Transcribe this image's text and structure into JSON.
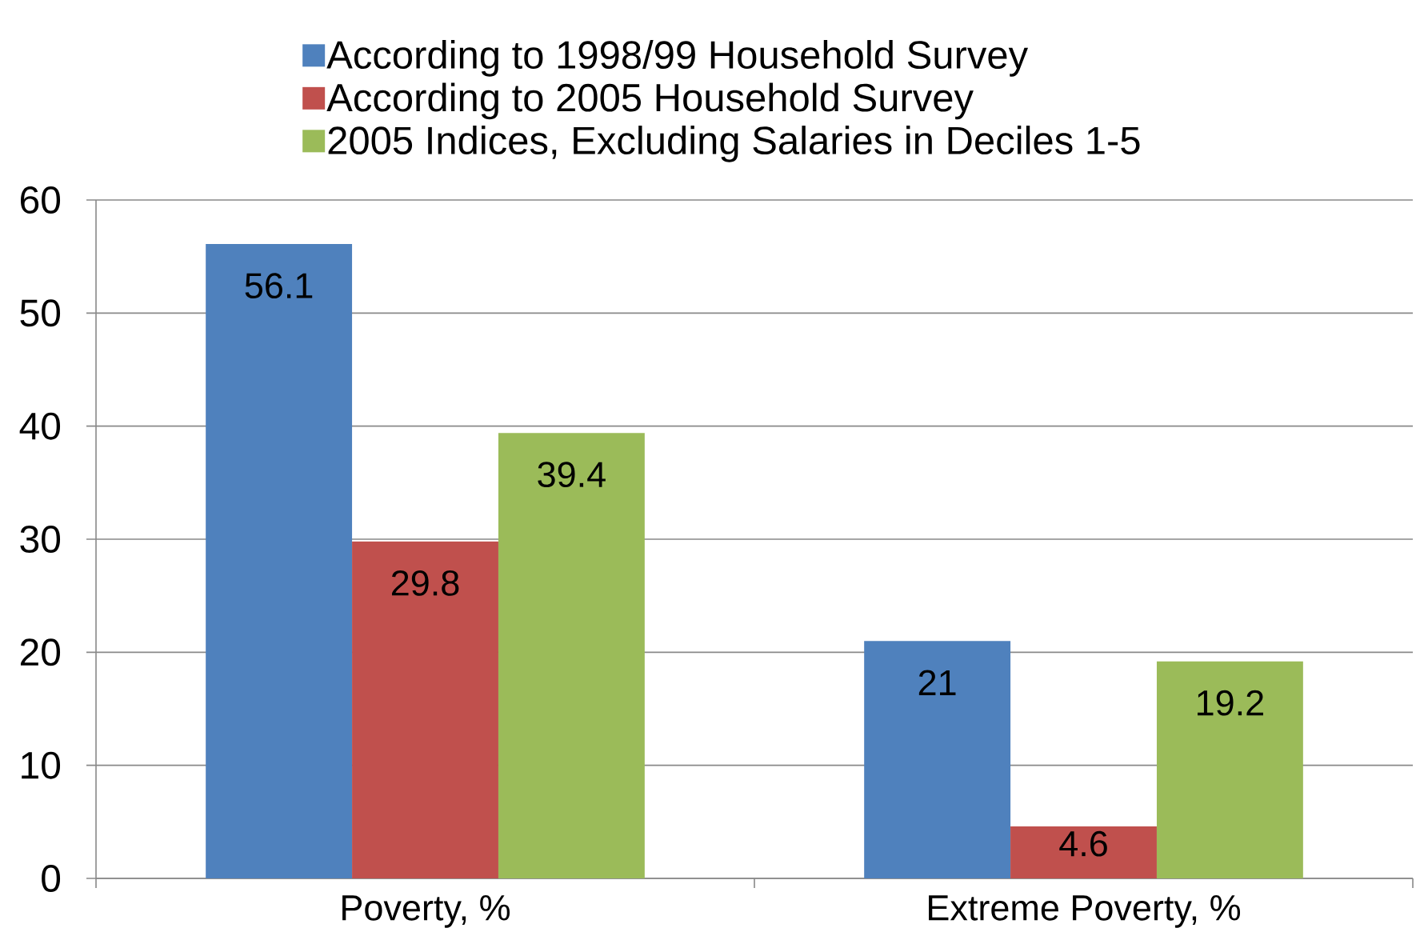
{
  "chart_data": {
    "type": "bar",
    "categories": [
      "Poverty, %",
      "Extreme Poverty, %"
    ],
    "series": [
      {
        "name": "According to 1998/99 Household Survey",
        "color": "#4f81bd",
        "values": [
          56.1,
          21
        ]
      },
      {
        "name": "According to 2005 Household Survey",
        "color": "#c0504d",
        "values": [
          29.8,
          4.6
        ]
      },
      {
        "name": "2005 Indices, Excluding Salaries in Deciles 1-5",
        "color": "#9bbb59",
        "values": [
          39.4,
          19.2
        ]
      }
    ],
    "ylim": [
      0,
      60
    ],
    "yticks": [
      0,
      10,
      20,
      30,
      40,
      50,
      60
    ],
    "grid": "y",
    "legend": "top",
    "data_labels": true
  }
}
